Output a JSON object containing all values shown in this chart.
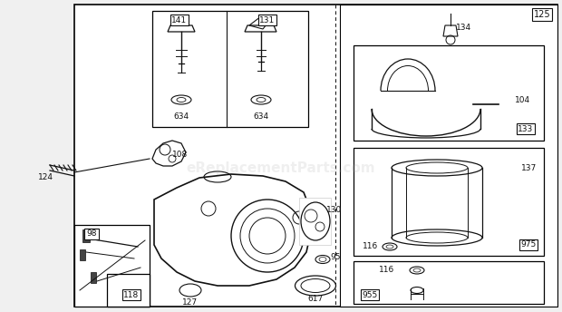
{
  "bg_color": "#f0f0f0",
  "white": "#ffffff",
  "black": "#111111",
  "gray": "#888888",
  "lgray": "#cccccc",
  "watermark": "eReplacementParts.com",
  "watermark_alpha": 0.18,
  "watermark_fontsize": 11,
  "fig_w": 6.2,
  "fig_h": 3.44,
  "dpi": 100
}
